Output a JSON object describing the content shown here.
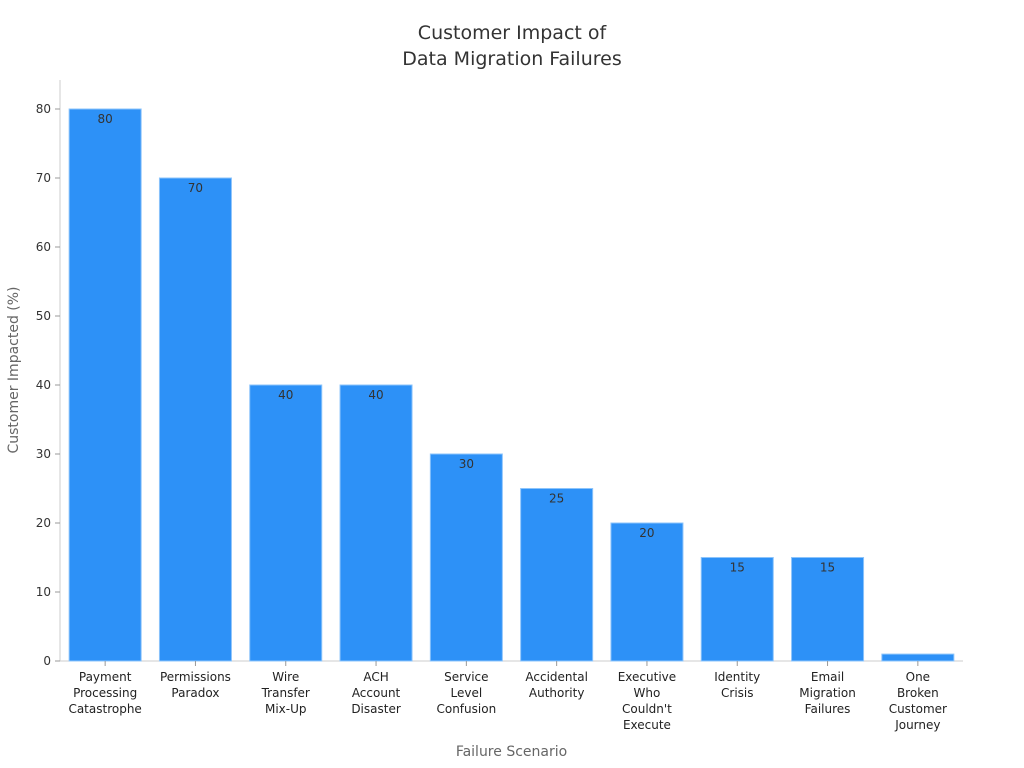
{
  "chart_data": {
    "type": "bar",
    "title_lines": [
      "Customer Impact of",
      "Data Migration Failures"
    ],
    "xlabel": "Failure Scenario",
    "ylabel": "Customer Impacted (%)",
    "ylim": [
      0,
      80
    ],
    "yticks": [
      0,
      10,
      20,
      30,
      40,
      50,
      60,
      70,
      80
    ],
    "grid": false,
    "bar_color": "#2d91f7",
    "categories": [
      [
        "Payment",
        "Processing",
        "Catastrophe"
      ],
      [
        "Permissions",
        "Paradox"
      ],
      [
        "Wire",
        "Transfer",
        "Mix-Up"
      ],
      [
        "ACH",
        "Account",
        "Disaster"
      ],
      [
        "Service",
        "Level",
        "Confusion"
      ],
      [
        "Accidental",
        "Authority"
      ],
      [
        "Executive",
        "Who",
        "Couldn't",
        "Execute"
      ],
      [
        "Identity",
        "Crisis"
      ],
      [
        "Email",
        "Migration",
        "Failures"
      ],
      [
        "One",
        "Broken",
        "Customer",
        "Journey"
      ]
    ],
    "values": [
      80,
      70,
      40,
      40,
      30,
      25,
      20,
      15,
      15,
      1
    ]
  }
}
